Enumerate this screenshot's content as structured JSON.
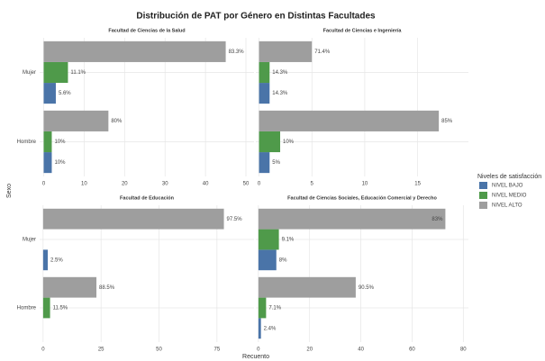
{
  "title": "Distribución de PAT por Género en Distintas Facultades",
  "x_label": "Recuento",
  "y_label": "Sexo",
  "legend_title": "Niveles de satisfacción",
  "chart_data": [
    {
      "type": "bar",
      "orientation": "horizontal",
      "title": "Facultad de Ciencias de la Salud",
      "categories": [
        "Mujer",
        "Hombre"
      ],
      "series": [
        {
          "name": "NIVEL BAJO",
          "color": "#4a74a8",
          "values": [
            3,
            2
          ],
          "value_labels": [
            "5.6%",
            "10%"
          ]
        },
        {
          "name": "NIVEL MEDIO",
          "color": "#4f9a4a",
          "values": [
            6,
            2
          ],
          "value_labels": [
            "11.1%",
            "10%"
          ]
        },
        {
          "name": "NIVEL ALTO",
          "color": "#9e9e9e",
          "values": [
            45,
            16
          ],
          "value_labels": [
            "83.3%",
            "80%"
          ]
        }
      ],
      "xlim": [
        -1,
        52
      ],
      "xticks": [
        0,
        10,
        20,
        30,
        40,
        50
      ],
      "grid": true
    },
    {
      "type": "bar",
      "orientation": "horizontal",
      "title": "Facultad de Ciencias e Ingeniería",
      "categories": [
        "Mujer",
        "Hombre"
      ],
      "series": [
        {
          "name": "NIVEL BAJO",
          "color": "#4a74a8",
          "values": [
            1,
            1
          ],
          "value_labels": [
            "14.3%",
            "5%"
          ]
        },
        {
          "name": "NIVEL MEDIO",
          "color": "#4f9a4a",
          "values": [
            1,
            2
          ],
          "value_labels": [
            "14.3%",
            "10%"
          ]
        },
        {
          "name": "NIVEL ALTO",
          "color": "#9e9e9e",
          "values": [
            5,
            17
          ],
          "value_labels": [
            "71.4%",
            "85%"
          ]
        }
      ],
      "xlim": [
        -0.3,
        19.8
      ],
      "xticks": [
        0,
        5,
        10,
        15
      ],
      "grid": true
    },
    {
      "type": "bar",
      "orientation": "horizontal",
      "title": "Facultad de Educación",
      "categories": [
        "Mujer",
        "Hombre"
      ],
      "series": [
        {
          "name": "NIVEL BAJO",
          "color": "#4a74a8",
          "values": [
            2,
            null
          ],
          "value_labels": [
            "2.5%",
            null
          ]
        },
        {
          "name": "NIVEL MEDIO",
          "color": "#4f9a4a",
          "values": [
            null,
            3
          ],
          "value_labels": [
            null,
            "11.5%"
          ]
        },
        {
          "name": "NIVEL ALTO",
          "color": "#9e9e9e",
          "values": [
            78,
            23
          ],
          "value_labels": [
            "97.5%",
            "88.5%"
          ]
        }
      ],
      "xlim": [
        -1.5,
        91
      ],
      "xticks": [
        0,
        25,
        50,
        75
      ],
      "grid": true
    },
    {
      "type": "bar",
      "orientation": "horizontal",
      "title": "Facultad de Ciencias Sociales, Educación Comercial y Derecho",
      "categories": [
        "Mujer",
        "Hombre"
      ],
      "series": [
        {
          "name": "NIVEL BAJO",
          "color": "#4a74a8",
          "values": [
            7,
            1
          ],
          "value_labels": [
            "8%",
            "2.4%"
          ]
        },
        {
          "name": "NIVEL MEDIO",
          "color": "#4f9a4a",
          "values": [
            8,
            3
          ],
          "value_labels": [
            "9.1%",
            "7.1%"
          ]
        },
        {
          "name": "NIVEL ALTO",
          "color": "#9e9e9e",
          "values": [
            73,
            38
          ],
          "value_labels": [
            "83%",
            "90.5%"
          ]
        }
      ],
      "xlim": [
        -1,
        82
      ],
      "xticks": [
        0,
        20,
        40,
        60,
        80
      ],
      "grid": true
    }
  ]
}
